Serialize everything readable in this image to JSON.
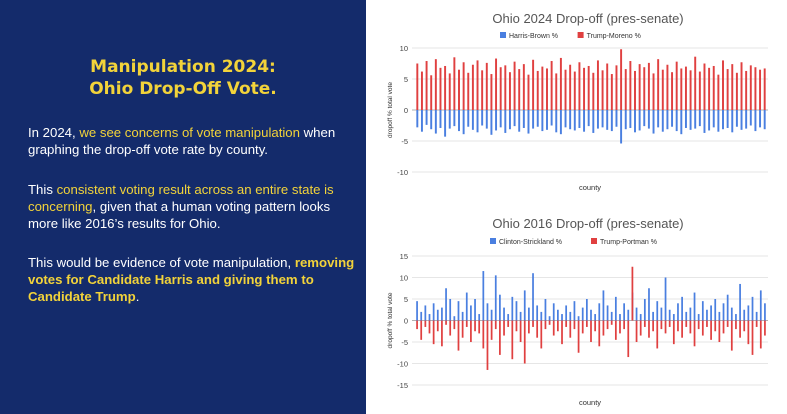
{
  "slide": {
    "title_line1": "Manipulation 2024:",
    "title_line2": "Ohio Drop-Off Vote.",
    "p1": {
      "a": "In 2024, ",
      "b": "we see concerns of vote manipulation",
      "c": " when graphing the drop-off vote rate by county."
    },
    "p2": {
      "a": "This ",
      "b": "consistent voting result across an entire state is concerning",
      "c": ", given that a human voting pattern looks more like 2016’s results for Ohio."
    },
    "p3": {
      "a": "This would be evidence of vote manipulation, ",
      "b": "removing votes for Candidate Harris and giving them to Candidate Trump",
      "c": "."
    }
  },
  "colors": {
    "panel_bg": "#142b6b",
    "highlight": "#f2d33a",
    "blue": "#4a7fe0",
    "red": "#e04040"
  },
  "chart_data": [
    {
      "type": "bar",
      "title": "Ohio 2024 Drop-off (pres-senate)",
      "xlabel": "county",
      "ylabel": "dropoff % total vote",
      "ylim": [
        -10,
        10
      ],
      "yticks": [
        10,
        5,
        0,
        -5,
        -10
      ],
      "grid": true,
      "legend_position": "top",
      "series": [
        {
          "name": "Harris-Brown %",
          "color": "#4a7fe0",
          "values": [
            -2.8,
            -3.5,
            -2.4,
            -3.1,
            -3.8,
            -2.9,
            -4.3,
            -3.0,
            -2.6,
            -3.4,
            -3.9,
            -2.7,
            -3.2,
            -3.6,
            -2.5,
            -3.0,
            -4.0,
            -3.3,
            -2.8,
            -3.7,
            -3.1,
            -2.6,
            -3.5,
            -2.9,
            -3.8,
            -3.0,
            -2.7,
            -3.4,
            -3.2,
            -2.5,
            -3.6,
            -3.9,
            -2.8,
            -3.1,
            -3.3,
            -2.9,
            -3.5,
            -2.6,
            -3.7,
            -3.0,
            -2.8,
            -3.2,
            -3.4,
            -2.7,
            -5.4,
            -3.1,
            -2.9,
            -3.6,
            -3.3,
            -2.6,
            -3.0,
            -3.8,
            -2.8,
            -3.5,
            -3.1,
            -2.7,
            -3.4,
            -3.9,
            -2.9,
            -3.2,
            -3.0,
            -2.6,
            -3.7,
            -3.3,
            -2.8,
            -3.5,
            -3.1,
            -2.9,
            -3.6,
            -2.7,
            -3.2,
            -3.0,
            -2.5,
            -3.4,
            -2.8,
            -3.1
          ]
        },
        {
          "name": "Trump-Moreno %",
          "color": "#e04040",
          "values": [
            7.5,
            6.2,
            7.9,
            5.6,
            8.2,
            6.8,
            7.1,
            5.9,
            8.5,
            6.5,
            7.7,
            6.0,
            7.3,
            8.0,
            6.4,
            7.6,
            5.8,
            8.3,
            6.9,
            7.2,
            6.1,
            7.8,
            6.6,
            7.4,
            5.7,
            8.1,
            6.3,
            7.0,
            6.7,
            7.9,
            5.9,
            8.4,
            6.5,
            7.3,
            6.2,
            7.7,
            6.8,
            7.1,
            6.0,
            8.0,
            6.4,
            7.5,
            5.8,
            7.2,
            9.8,
            6.6,
            7.9,
            6.3,
            7.4,
            6.9,
            7.6,
            5.9,
            8.2,
            6.5,
            7.3,
            6.1,
            7.8,
            6.7,
            7.0,
            6.4,
            8.6,
            6.2,
            7.5,
            6.8,
            7.1,
            5.7,
            8.0,
            6.6,
            7.4,
            6.0,
            7.7,
            6.3,
            7.2,
            6.9,
            6.5,
            6.7
          ]
        }
      ]
    },
    {
      "type": "bar",
      "title": "Ohio 2016 Drop-off (pres-senate)",
      "xlabel": "county",
      "ylabel": "dropoff % total vote",
      "ylim": [
        -15,
        15
      ],
      "yticks": [
        15,
        10,
        5,
        0,
        -5,
        -10,
        -15
      ],
      "grid": true,
      "legend_position": "top",
      "series": [
        {
          "name": "Clinton-Strickland %",
          "color": "#4a7fe0",
          "values": [
            4.5,
            2.0,
            3.5,
            1.5,
            4.0,
            2.5,
            3.0,
            7.5,
            5.0,
            1.0,
            4.5,
            2.0,
            6.5,
            3.5,
            5.0,
            1.5,
            11.5,
            4.0,
            2.5,
            10.5,
            6.0,
            3.0,
            1.5,
            5.5,
            4.5,
            2.0,
            7.0,
            3.0,
            11.0,
            3.5,
            2.0,
            5.0,
            1.0,
            4.0,
            2.5,
            1.5,
            3.5,
            2.0,
            4.5,
            1.0,
            3.0,
            5.0,
            2.5,
            1.5,
            4.0,
            7.0,
            3.5,
            2.0,
            5.5,
            1.5,
            4.0,
            2.5,
            6.5,
            3.0,
            1.5,
            5.0,
            7.5,
            2.0,
            4.5,
            3.0,
            10.0,
            2.5,
            1.5,
            4.0,
            5.5,
            2.0,
            3.0,
            6.5,
            1.5,
            4.5,
            2.5,
            3.5,
            5.0,
            2.0,
            4.0,
            6.0,
            3.0,
            1.5,
            8.5,
            2.5,
            3.5,
            5.5,
            2.0,
            7.0,
            4.0
          ]
        },
        {
          "name": "Trump-Portman %",
          "color": "#e04040",
          "values": [
            -2.0,
            -4.5,
            -1.5,
            -3.0,
            -5.5,
            -2.5,
            -6.0,
            -1.0,
            -3.5,
            -2.0,
            -7.0,
            -4.0,
            -1.5,
            -5.0,
            -2.5,
            -3.0,
            -6.5,
            -11.5,
            -4.5,
            -2.0,
            -8.0,
            -3.5,
            -1.5,
            -9.0,
            -2.5,
            -5.0,
            -10.0,
            -3.0,
            -1.5,
            -4.0,
            -6.5,
            -2.0,
            -1.0,
            -3.5,
            -2.5,
            -5.5,
            -1.5,
            -4.0,
            -2.0,
            -7.5,
            -3.0,
            -1.5,
            -5.0,
            -2.5,
            -6.0,
            -3.5,
            -2.0,
            -1.0,
            -4.5,
            -3.0,
            -2.0,
            -8.5,
            12.5,
            -5.0,
            -3.5,
            -1.5,
            -4.0,
            -2.5,
            -6.5,
            -2.0,
            -3.0,
            -1.5,
            -5.5,
            -2.5,
            -4.0,
            -1.5,
            -3.0,
            -6.0,
            -2.0,
            -3.5,
            -1.5,
            -4.5,
            -2.5,
            -5.0,
            -3.0,
            -1.5,
            -7.0,
            -2.0,
            -4.0,
            -2.5,
            -5.5,
            -8.0,
            -1.5,
            -6.5,
            -3.5
          ]
        }
      ]
    }
  ]
}
